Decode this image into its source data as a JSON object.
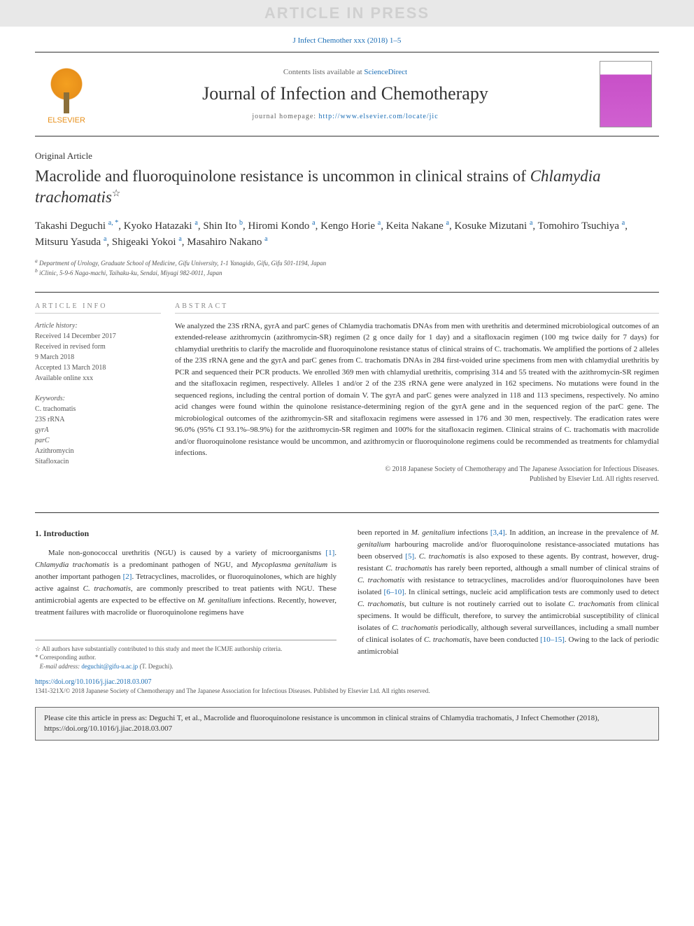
{
  "press_banner": "ARTICLE IN PRESS",
  "citation_top": {
    "text": "J Infect Chemother xxx (2018) 1–5",
    "link_color": "#1a6db5"
  },
  "header": {
    "contents_available": "Contents lists available at",
    "sciencedirect": "ScienceDirect",
    "journal_name": "Journal of Infection and Chemotherapy",
    "homepage_label": "journal homepage:",
    "homepage_url": "http://www.elsevier.com/locate/jic",
    "publisher_logo_text": "ELSEVIER"
  },
  "article": {
    "type": "Original Article",
    "title_pre": "Macrolide and fluoroquinolone resistance is uncommon in clinical strains of ",
    "title_italic": "Chlamydia trachomatis",
    "title_star": "☆",
    "authors_html": "Takashi Deguchi <sup>a, *</sup>, Kyoko Hatazaki <sup>a</sup>, Shin Ito <sup>b</sup>, Hiromi Kondo <sup>a</sup>, Kengo Horie <sup>a</sup>, Keita Nakane <sup>a</sup>, Kosuke Mizutani <sup>a</sup>, Tomohiro Tsuchiya <sup>a</sup>, Mitsuru Yasuda <sup>a</sup>, Shigeaki Yokoi <sup>a</sup>, Masahiro Nakano <sup>a</sup>",
    "affiliations": [
      "a Department of Urology, Graduate School of Medicine, Gifu University, 1-1 Yanagido, Gifu, Gifu 501-1194, Japan",
      "b iClinic, 5-9-6 Naga-machi, Taihaku-ku, Sendai, Miyagi 982-0011, Japan"
    ]
  },
  "article_info": {
    "heading": "ARTICLE INFO",
    "history_label": "Article history:",
    "history": [
      "Received 14 December 2017",
      "Received in revised form",
      "9 March 2018",
      "Accepted 13 March 2018",
      "Available online xxx"
    ],
    "keywords_label": "Keywords:",
    "keywords": [
      "C. trachomatis",
      "23S rRNA",
      "gyrA",
      "parC",
      "Azithromycin",
      "Sitafloxacin"
    ]
  },
  "abstract": {
    "heading": "ABSTRACT",
    "text": "We analyzed the 23S rRNA, gyrA and parC genes of Chlamydia trachomatis DNAs from men with urethritis and determined microbiological outcomes of an extended-release azithromycin (azithromycin-SR) regimen (2 g once daily for 1 day) and a sitafloxacin regimen (100 mg twice daily for 7 days) for chlamydial urethritis to clarify the macrolide and fluoroquinolone resistance status of clinical strains of C. trachomatis. We amplified the portions of 2 alleles of the 23S rRNA gene and the gyrA and parC genes from C. trachomatis DNAs in 284 first-voided urine specimens from men with chlamydial urethritis by PCR and sequenced their PCR products. We enrolled 369 men with chlamydial urethritis, comprising 314 and 55 treated with the azithromycin-SR regimen and the sitafloxacin regimen, respectively. Alleles 1 and/or 2 of the 23S rRNA gene were analyzed in 162 specimens. No mutations were found in the sequenced regions, including the central portion of domain V. The gyrA and parC genes were analyzed in 118 and 113 specimens, respectively. No amino acid changes were found within the quinolone resistance-determining region of the gyrA gene and in the sequenced region of the parC gene. The microbiological outcomes of the azithromycin-SR and sitafloxacin regimens were assessed in 176 and 30 men, respectively. The eradication rates were 96.0% (95% CI 93.1%–98.9%) for the azithromycin-SR regimen and 100% for the sitafloxacin regimen. Clinical strains of C. trachomatis with macrolide and/or fluoroquinolone resistance would be uncommon, and azithromycin or fluoroquinolone regimens could be recommended as treatments for chlamydial infections.",
    "copyright1": "© 2018 Japanese Society of Chemotherapy and The Japanese Association for Infectious Diseases.",
    "copyright2": "Published by Elsevier Ltd. All rights reserved."
  },
  "body": {
    "section_heading": "1. Introduction",
    "col1_para": "Male non-gonococcal urethritis (NGU) is caused by a variety of microorganisms [1]. Chlamydia trachomatis is a predominant pathogen of NGU, and Mycoplasma genitalium is another important pathogen [2]. Tetracyclines, macrolides, or fluoroquinolones, which are highly active against C. trachomatis, are commonly prescribed to treat patients with NGU. These antimicrobial agents are expected to be effective on M. genitalium infections. Recently, however, treatment failures with macrolide or fluoroquinolone regimens have",
    "col2_para": "been reported in M. genitalium infections [3,4]. In addition, an increase in the prevalence of M. genitalium harbouring macrolide and/or fluoroquinolone resistance-associated mutations has been observed [5]. C. trachomatis is also exposed to these agents. By contrast, however, drug-resistant C. trachomatis has rarely been reported, although a small number of clinical strains of C. trachomatis with resistance to tetracyclines, macrolides and/or fluoroquinolones have been isolated [6–10]. In clinical settings, nucleic acid amplification tests are commonly used to detect C. trachomatis, but culture is not routinely carried out to isolate C. trachomatis from clinical specimens. It would be difficult, therefore, to survey the antimicrobial susceptibility of clinical isolates of C. trachomatis periodically, although several surveillances, including a small number of clinical isolates of C. trachomatis, have been conducted [10–15]. Owing to the lack of periodic antimicrobial",
    "refs_col1": [
      "[1]",
      "[2]"
    ],
    "refs_col2": [
      "[3,4]",
      "[5]",
      "[6–10]",
      "[10–15]"
    ]
  },
  "footnotes": {
    "star": "☆ All authors have substantially contributed to this study and meet the ICMJE authorship criteria.",
    "corresponding": "* Corresponding author.",
    "email_label": "E-mail address:",
    "email": "deguchit@gifu-u.ac.jp",
    "email_suffix": "(T. Deguchi)."
  },
  "doi": {
    "url": "https://doi.org/10.1016/j.jiac.2018.03.007",
    "issn_line": "1341-321X/© 2018 Japanese Society of Chemotherapy and The Japanese Association for Infectious Diseases. Published by Elsevier Ltd. All rights reserved."
  },
  "cite_box": "Please cite this article in press as: Deguchi T, et al., Macrolide and fluoroquinolone resistance is uncommon in clinical strains of Chlamydia trachomatis, J Infect Chemother (2018), https://doi.org/10.1016/j.jiac.2018.03.007",
  "colors": {
    "link": "#1a6db5",
    "banner_bg": "#e8e8e8",
    "banner_fg": "#d0d0d0",
    "text": "#333333",
    "muted": "#555555",
    "cover_pink": "#c850c8"
  },
  "typography": {
    "body_fontsize_pt": 11,
    "title_fontsize_pt": 23,
    "journal_name_fontsize_pt": 26,
    "footnote_fontsize_pt": 9
  }
}
